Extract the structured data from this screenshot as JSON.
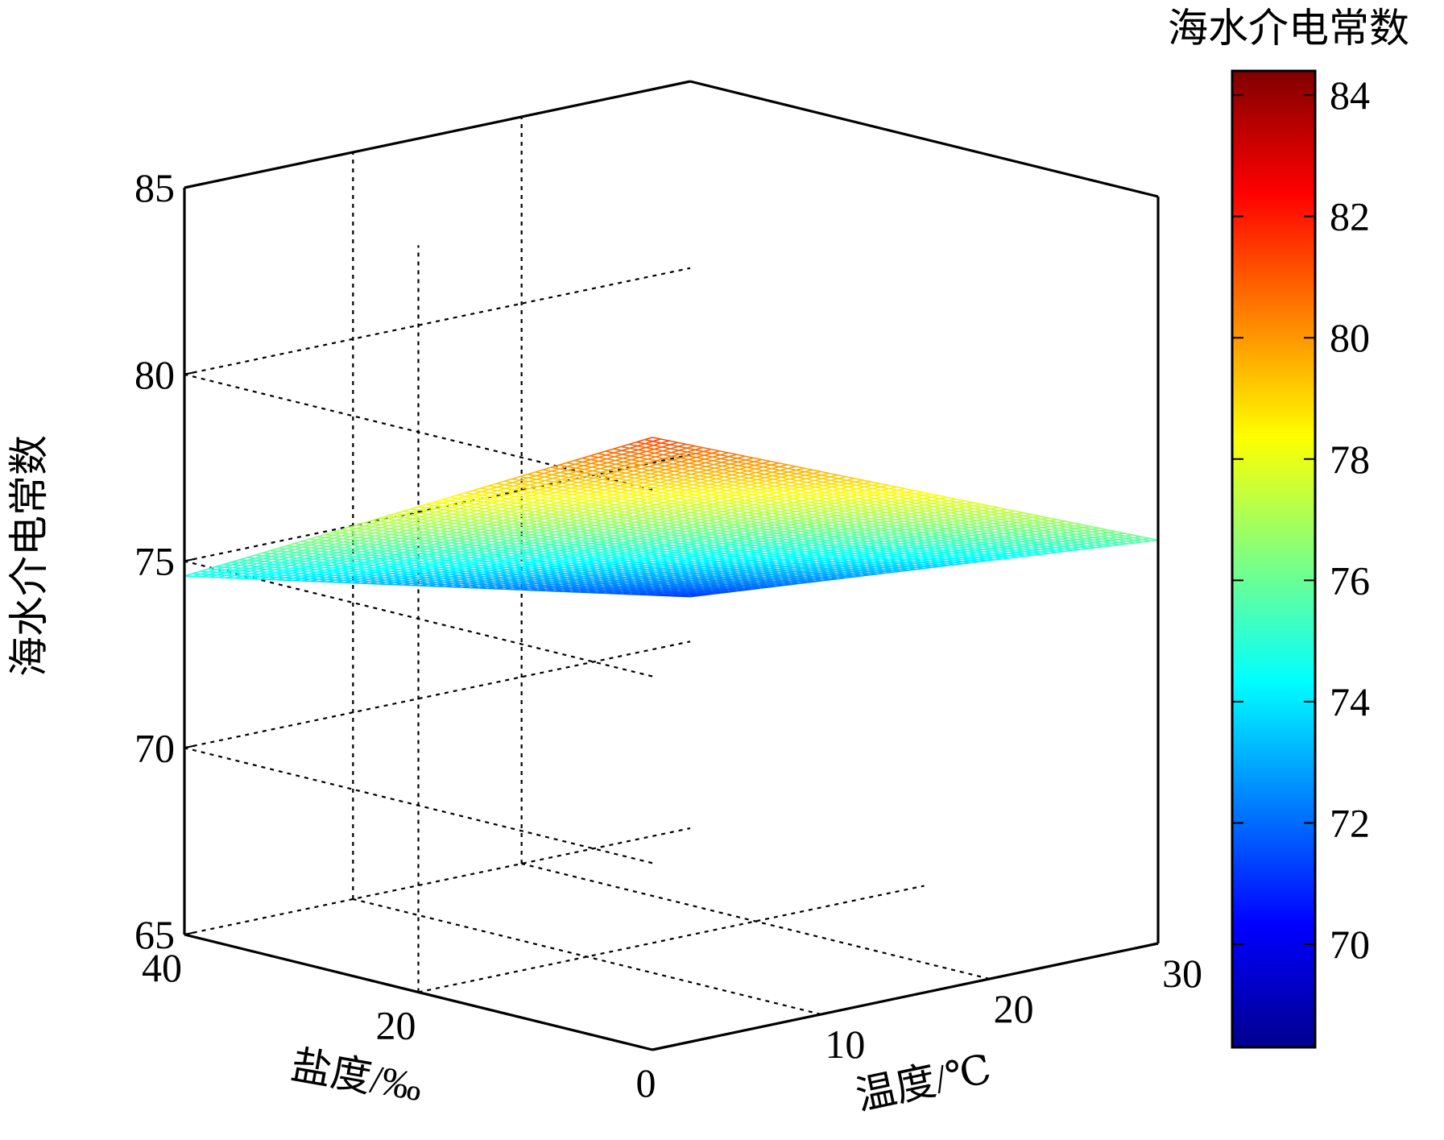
{
  "chart_data": {
    "type": "surface",
    "title": "",
    "xlabel": "温度/℃",
    "ylabel": "盐度/‰",
    "zlabel": "海水介电常数",
    "colorbar_label": "海水介电常数",
    "xlim": [
      0,
      30
    ],
    "ylim": [
      0,
      40
    ],
    "zlim": [
      65,
      85
    ],
    "xticks": [
      "10",
      "20",
      "30"
    ],
    "yticks": [
      "0",
      "20",
      "40"
    ],
    "zticks": [
      "65",
      "70",
      "75",
      "80",
      "85"
    ],
    "colorbar_range": [
      68.3,
      84.4
    ],
    "colorbar_ticks": [
      "70",
      "72",
      "74",
      "76",
      "78",
      "80",
      "82",
      "84"
    ],
    "colormap": "jet",
    "grid": true,
    "corner_values": [
      {
        "temperature": 0,
        "salinity": 0,
        "permittivity": 81.4
      },
      {
        "temperature": 30,
        "salinity": 0,
        "permittivity": 75.8
      },
      {
        "temperature": 0,
        "salinity": 40,
        "permittivity": 74.6
      },
      {
        "temperature": 30,
        "salinity": 40,
        "permittivity": 71.2
      }
    ]
  }
}
